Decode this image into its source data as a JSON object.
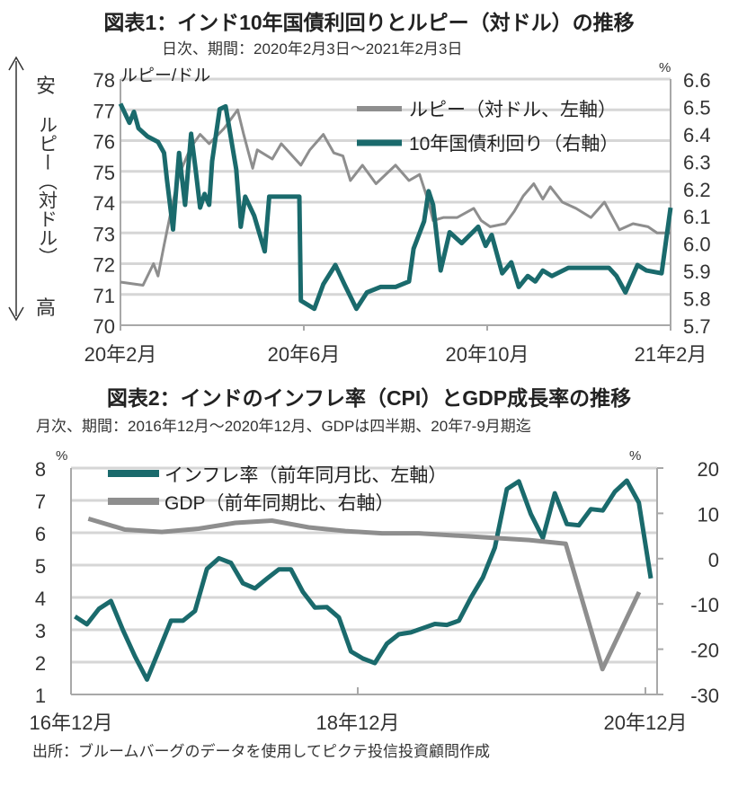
{
  "colors": {
    "teal": "#1a6a6c",
    "gray": "#8e8e8e",
    "grid": "#d6d6d6",
    "axis": "#a8a8a8"
  },
  "chart_data": [
    {
      "type": "line",
      "title": "図表1：インド10年国債利回りとルピー（対ドル）の推移",
      "subtitle": "日次、期間：2020年2月3日～2021年2月3日",
      "left_unit": "ルピー/ドル",
      "right_unit": "%",
      "left_axis_label": {
        "top": "安",
        "middle": "ルピー（対ドル）",
        "bottom": "高"
      },
      "ylim_left": [
        70,
        78
      ],
      "ylim_right": [
        5.7,
        6.6
      ],
      "yticks_left": [
        "70",
        "71",
        "72",
        "73",
        "74",
        "75",
        "76",
        "77",
        "78"
      ],
      "yticks_right": [
        "5.7",
        "5.8",
        "5.9",
        "6.0",
        "6.1",
        "6.2",
        "6.3",
        "6.4",
        "6.5",
        "6.6"
      ],
      "xlim": [
        "2020-02-03",
        "2021-02-03"
      ],
      "xtick_labels": [
        "20年2月",
        "20年6月",
        "20年10月",
        "21年2月"
      ],
      "grid": true,
      "legend_position": "top-right",
      "series": [
        {
          "name": "ルピー（対ドル、左軸）",
          "axis": "left",
          "color": "gray",
          "points": [
            [
              "2020-02-03",
              71.4
            ],
            [
              "2020-02-18",
              71.3
            ],
            [
              "2020-02-25",
              72.0
            ],
            [
              "2020-02-28",
              71.6
            ],
            [
              "2020-03-03",
              72.6
            ],
            [
              "2020-03-08",
              73.8
            ],
            [
              "2020-03-13",
              74.9
            ],
            [
              "2020-03-21",
              75.8
            ],
            [
              "2020-03-27",
              76.2
            ],
            [
              "2020-04-02",
              75.9
            ],
            [
              "2020-04-12",
              76.4
            ],
            [
              "2020-04-21",
              77.0
            ],
            [
              "2020-04-25",
              76.2
            ],
            [
              "2020-05-01",
              75.1
            ],
            [
              "2020-05-04",
              75.7
            ],
            [
              "2020-05-14",
              75.4
            ],
            [
              "2020-05-20",
              75.9
            ],
            [
              "2020-06-02",
              75.2
            ],
            [
              "2020-06-08",
              75.7
            ],
            [
              "2020-06-17",
              76.2
            ],
            [
              "2020-06-24",
              75.6
            ],
            [
              "2020-06-30",
              75.5
            ],
            [
              "2020-07-05",
              74.7
            ],
            [
              "2020-07-13",
              75.2
            ],
            [
              "2020-07-22",
              74.6
            ],
            [
              "2020-08-04",
              75.2
            ],
            [
              "2020-08-13",
              74.7
            ],
            [
              "2020-08-20",
              74.9
            ],
            [
              "2020-08-26",
              74.0
            ],
            [
              "2020-08-29",
              73.4
            ],
            [
              "2020-09-05",
              73.5
            ],
            [
              "2020-09-14",
              73.5
            ],
            [
              "2020-09-25",
              73.8
            ],
            [
              "2020-09-30",
              73.4
            ],
            [
              "2020-10-06",
              73.2
            ],
            [
              "2020-10-16",
              73.3
            ],
            [
              "2020-10-22",
              73.7
            ],
            [
              "2020-10-28",
              74.2
            ],
            [
              "2020-11-04",
              74.6
            ],
            [
              "2020-11-10",
              74.1
            ],
            [
              "2020-11-15",
              74.5
            ],
            [
              "2020-11-23",
              74.0
            ],
            [
              "2020-12-02",
              73.8
            ],
            [
              "2020-12-12",
              73.5
            ],
            [
              "2020-12-21",
              74.0
            ],
            [
              "2020-12-31",
              73.1
            ],
            [
              "2021-01-09",
              73.3
            ],
            [
              "2021-01-19",
              73.2
            ],
            [
              "2021-01-25",
              73.0
            ],
            [
              "2021-02-03",
              73.0
            ]
          ]
        },
        {
          "name": "10年国債利回り（右軸）",
          "axis": "right",
          "color": "teal",
          "points": [
            [
              "2020-02-03",
              6.51
            ],
            [
              "2020-02-09",
              6.44
            ],
            [
              "2020-02-12",
              6.48
            ],
            [
              "2020-02-15",
              6.42
            ],
            [
              "2020-02-21",
              6.39
            ],
            [
              "2020-02-28",
              6.37
            ],
            [
              "2020-03-03",
              6.33
            ],
            [
              "2020-03-05",
              6.23
            ],
            [
              "2020-03-09",
              6.05
            ],
            [
              "2020-03-13",
              6.33
            ],
            [
              "2020-03-17",
              6.14
            ],
            [
              "2020-03-21",
              6.4
            ],
            [
              "2020-03-24",
              6.27
            ],
            [
              "2020-03-27",
              6.13
            ],
            [
              "2020-03-30",
              6.18
            ],
            [
              "2020-04-02",
              6.14
            ],
            [
              "2020-04-04",
              6.3
            ],
            [
              "2020-04-09",
              6.49
            ],
            [
              "2020-04-13",
              6.5
            ],
            [
              "2020-04-20",
              6.27
            ],
            [
              "2020-04-23",
              6.06
            ],
            [
              "2020-04-26",
              6.17
            ],
            [
              "2020-05-02",
              6.1
            ],
            [
              "2020-05-09",
              5.97
            ],
            [
              "2020-05-12",
              6.17
            ],
            [
              "2020-06-01",
              6.17
            ],
            [
              "2020-06-02",
              5.79
            ],
            [
              "2020-06-11",
              5.76
            ],
            [
              "2020-06-17",
              5.85
            ],
            [
              "2020-06-25",
              5.92
            ],
            [
              "2020-07-01",
              5.85
            ],
            [
              "2020-07-09",
              5.76
            ],
            [
              "2020-07-16",
              5.82
            ],
            [
              "2020-07-25",
              5.84
            ],
            [
              "2020-08-04",
              5.84
            ],
            [
              "2020-08-13",
              5.86
            ],
            [
              "2020-08-16",
              5.98
            ],
            [
              "2020-08-23",
              6.08
            ],
            [
              "2020-08-26",
              6.19
            ],
            [
              "2020-08-29",
              6.14
            ],
            [
              "2020-09-03",
              5.9
            ],
            [
              "2020-09-09",
              6.04
            ],
            [
              "2020-09-17",
              6.0
            ],
            [
              "2020-09-28",
              6.06
            ],
            [
              "2020-10-03",
              5.99
            ],
            [
              "2020-10-07",
              6.03
            ],
            [
              "2020-10-14",
              5.89
            ],
            [
              "2020-10-20",
              5.93
            ],
            [
              "2020-10-25",
              5.84
            ],
            [
              "2020-10-31",
              5.88
            ],
            [
              "2020-11-05",
              5.86
            ],
            [
              "2020-11-10",
              5.9
            ],
            [
              "2020-11-16",
              5.88
            ],
            [
              "2020-11-27",
              5.91
            ],
            [
              "2020-12-24",
              5.91
            ],
            [
              "2020-12-29",
              5.88
            ],
            [
              "2021-01-04",
              5.82
            ],
            [
              "2021-01-12",
              5.92
            ],
            [
              "2021-01-18",
              5.9
            ],
            [
              "2021-01-28",
              5.89
            ],
            [
              "2021-01-31",
              6.01
            ],
            [
              "2021-02-03",
              6.13
            ]
          ]
        }
      ]
    },
    {
      "type": "line",
      "title": "図表2：インドのインフレ率（CPI）とGDP成長率の推移",
      "subtitle": "月次、期間：2016年12月～2020年12月、GDPは四半期、20年7-9月期迄",
      "left_unit": "%",
      "right_unit": "%",
      "ylim_left": [
        1,
        8
      ],
      "ylim_right": [
        -30,
        20
      ],
      "yticks_left": [
        "1",
        "2",
        "3",
        "4",
        "5",
        "6",
        "7",
        "8"
      ],
      "yticks_right": [
        "-30",
        "-20",
        "-10",
        "0",
        "10",
        "20"
      ],
      "xtick_labels": [
        "16年12月",
        "18年12月",
        "20年12月"
      ],
      "grid": true,
      "legend_position": "top-left",
      "series": [
        {
          "name": "インフレ率（前年同月比、左軸）",
          "axis": "left",
          "color": "teal",
          "x": [
            "2016-12",
            "2017-01",
            "2017-02",
            "2017-03",
            "2017-04",
            "2017-05",
            "2017-06",
            "2017-07",
            "2017-08",
            "2017-09",
            "2017-10",
            "2017-11",
            "2017-12",
            "2018-01",
            "2018-02",
            "2018-03",
            "2018-04",
            "2018-05",
            "2018-06",
            "2018-07",
            "2018-08",
            "2018-09",
            "2018-10",
            "2018-11",
            "2018-12",
            "2019-01",
            "2019-02",
            "2019-03",
            "2019-04",
            "2019-05",
            "2019-06",
            "2019-07",
            "2019-08",
            "2019-09",
            "2019-10",
            "2019-11",
            "2019-12",
            "2020-01",
            "2020-02",
            "2020-03",
            "2020-04",
            "2020-05",
            "2020-06",
            "2020-07",
            "2020-08",
            "2020-09",
            "2020-10",
            "2020-11",
            "2020-12"
          ],
          "values": [
            3.41,
            3.17,
            3.65,
            3.89,
            2.99,
            2.18,
            1.46,
            2.36,
            3.28,
            3.28,
            3.58,
            4.88,
            5.21,
            5.07,
            4.44,
            4.28,
            4.58,
            4.87,
            4.87,
            4.17,
            3.69,
            3.7,
            3.38,
            2.33,
            2.11,
            1.97,
            2.57,
            2.86,
            2.92,
            3.05,
            3.18,
            3.15,
            3.28,
            3.99,
            4.62,
            5.54,
            7.35,
            7.59,
            6.58,
            5.84,
            7.22,
            6.27,
            6.23,
            6.73,
            6.69,
            7.27,
            7.61,
            6.93,
            4.59
          ]
        },
        {
          "name": "GDP（前年同期比、右軸）",
          "axis": "right",
          "color": "gray",
          "x": [
            "2016Q4",
            "2017Q1",
            "2017Q2",
            "2017Q3",
            "2017Q4",
            "2018Q1",
            "2018Q2",
            "2018Q3",
            "2018Q4",
            "2019Q1",
            "2019Q2",
            "2019Q3",
            "2019Q4",
            "2020Q1",
            "2020Q2",
            "2020Q3"
          ],
          "values": [
            8.8,
            6.4,
            5.9,
            6.6,
            7.9,
            8.4,
            6.9,
            6.1,
            5.6,
            5.6,
            5.1,
            4.6,
            4.1,
            3.3,
            -24.4,
            -7.4
          ]
        }
      ]
    }
  ],
  "source": "出所：ブルームバーグのデータを使用してピクテ投信投資顧問作成"
}
